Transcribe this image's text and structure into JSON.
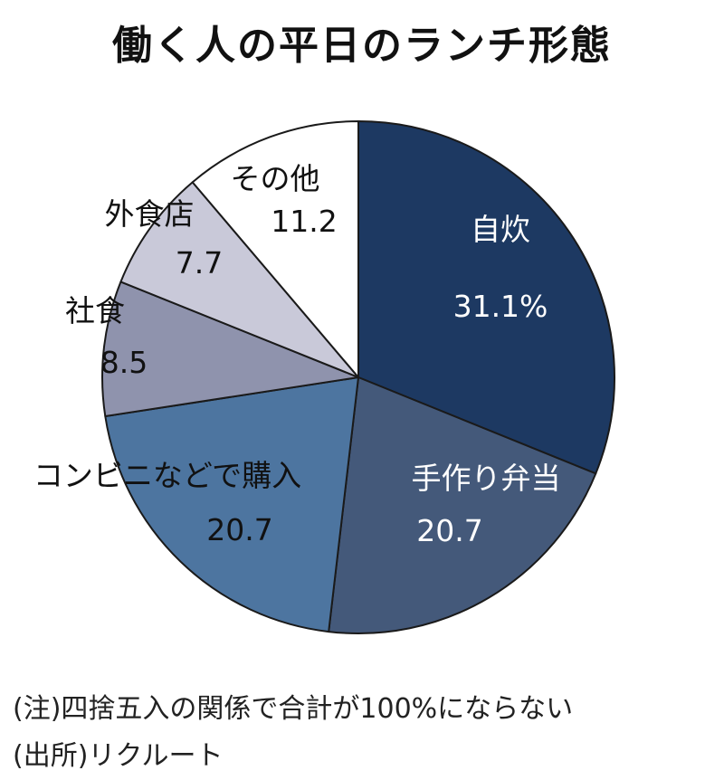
{
  "title": "働く人の平日のランチ形態",
  "chart_data": {
    "type": "pie",
    "title": "働く人の平日のランチ形態",
    "unit": "%",
    "start_angle_deg": 0,
    "direction": "clockwise",
    "slices": [
      {
        "label": "自炊",
        "value": 31.1,
        "value_text": "31.1%",
        "color": "#1d3962",
        "text_color": "#ffffff"
      },
      {
        "label": "手作り弁当",
        "value": 20.7,
        "value_text": "20.7",
        "color": "#44597a",
        "text_color": "#ffffff"
      },
      {
        "label": "コンビニなどで購入",
        "value": 20.7,
        "value_text": "20.7",
        "color": "#4d75a0",
        "text_color": "#111111"
      },
      {
        "label": "社食",
        "value": 8.5,
        "value_text": "8.5",
        "color": "#8f93ad",
        "text_color": "#111111"
      },
      {
        "label": "外食店",
        "value": 7.7,
        "value_text": "7.7",
        "color": "#c9c9d9",
        "text_color": "#111111"
      },
      {
        "label": "その他",
        "value": 11.2,
        "value_text": "11.2",
        "color": "#ffffff",
        "text_color": "#111111"
      }
    ]
  },
  "notes": {
    "note": "(注)四捨五入の関係で合計が100%にならない",
    "source": "(出所)リクルート"
  }
}
